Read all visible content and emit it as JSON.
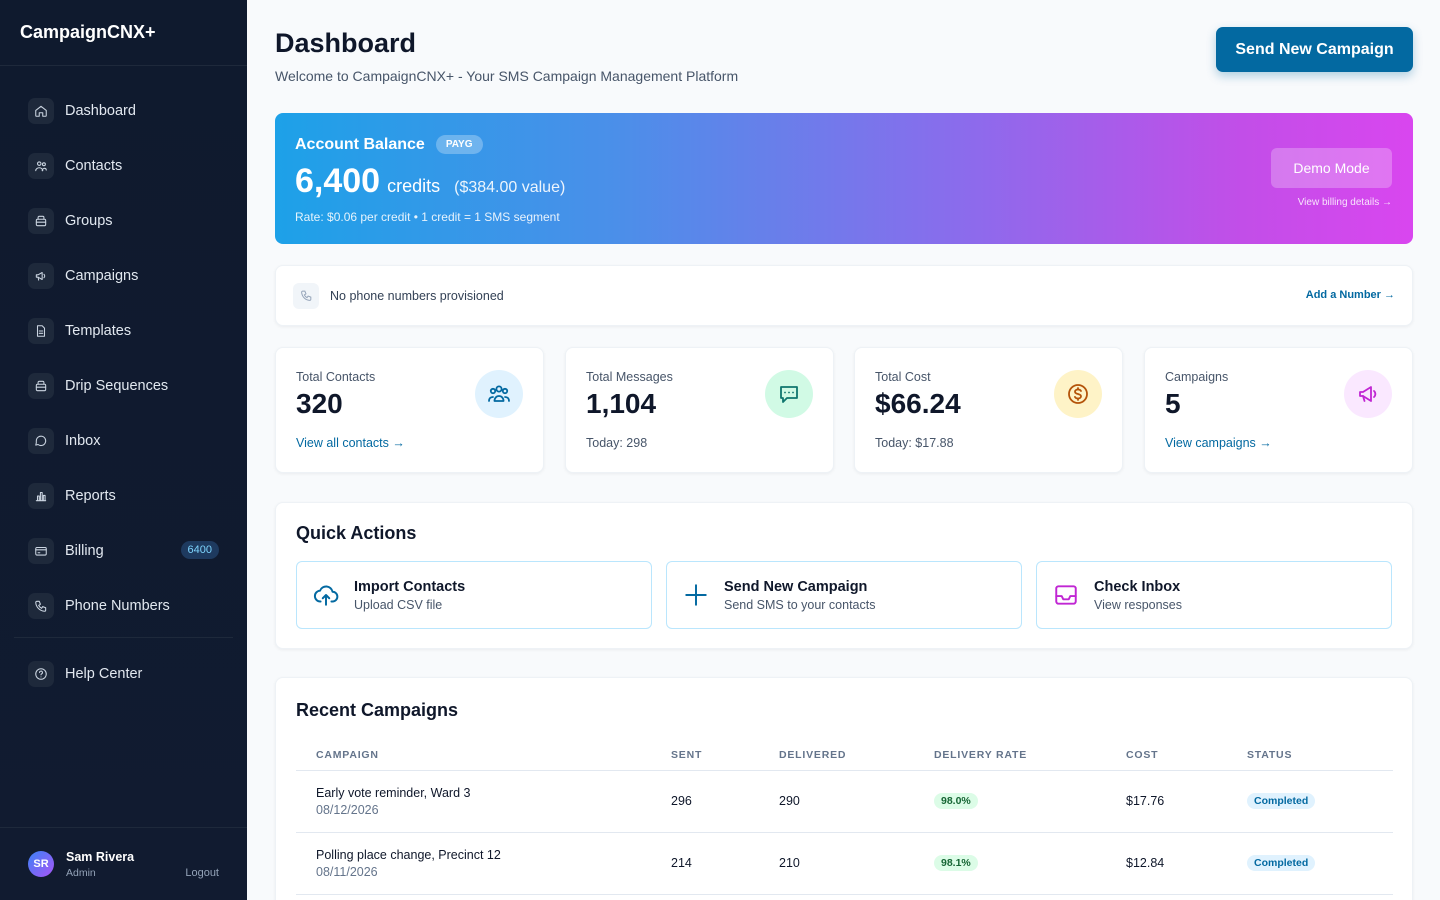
{
  "app": {
    "brand": "CampaignCNX+"
  },
  "sidebar": {
    "items": [
      {
        "label": "Dashboard",
        "icon": "home-icon"
      },
      {
        "label": "Contacts",
        "icon": "users-icon"
      },
      {
        "label": "Groups",
        "icon": "folder-icon"
      },
      {
        "label": "Campaigns",
        "icon": "megaphone-icon"
      },
      {
        "label": "Templates",
        "icon": "document-icon"
      },
      {
        "label": "Drip Sequences",
        "icon": "drip-icon"
      },
      {
        "label": "Inbox",
        "icon": "chat-icon"
      },
      {
        "label": "Reports",
        "icon": "bar-chart-icon"
      },
      {
        "label": "Billing",
        "icon": "card-icon",
        "badge": "6400"
      },
      {
        "label": "Phone Numbers",
        "icon": "phone-icon"
      }
    ],
    "help": {
      "label": "Help Center",
      "icon": "help-icon"
    },
    "user": {
      "initials": "SR",
      "name": "Sam Rivera",
      "role": "Admin",
      "logout": "Logout"
    }
  },
  "header": {
    "title": "Dashboard",
    "subtitle": "Welcome to CampaignCNX+ - Your SMS Campaign Management Platform",
    "cta": "Send New Campaign"
  },
  "balance": {
    "title": "Account Balance",
    "plan": "PAYG",
    "credits": "6,400",
    "unit": "credits",
    "value": "($384.00 value)",
    "rate": "Rate: $0.06 per credit • 1 credit = 1 SMS segment",
    "demo": "Demo Mode",
    "billing_link": "View billing details →"
  },
  "phone": {
    "text": "No phone numbers provisioned",
    "action": "Add a Number →"
  },
  "stats": [
    {
      "label": "Total Contacts",
      "value": "320",
      "foot": "View all contacts →",
      "icon": "users-icon",
      "color": "#0369a1",
      "bg": "#e0f2fe"
    },
    {
      "label": "Total Messages",
      "value": "1,104",
      "foot": "Today: 298",
      "icon": "chat-icon",
      "color": "#0f766e",
      "bg": "#d1fae5"
    },
    {
      "label": "Total Cost",
      "value": "$66.24",
      "foot": "Today: $17.88",
      "icon": "dollar-icon",
      "color": "#b45309",
      "bg": "#fef3c7"
    },
    {
      "label": "Campaigns",
      "value": "5",
      "foot": "View campaigns →",
      "icon": "megaphone-icon",
      "color": "#c026d3",
      "bg": "#fae8ff"
    }
  ],
  "quick_actions": {
    "title": "Quick Actions",
    "items": [
      {
        "title": "Import Contacts",
        "sub": "Upload CSV file",
        "icon": "upload-cloud-icon",
        "color": "#0369a1"
      },
      {
        "title": "Send New Campaign",
        "sub": "Send SMS to your contacts",
        "icon": "plus-icon",
        "color": "#0369a1"
      },
      {
        "title": "Check Inbox",
        "sub": "View responses",
        "icon": "inbox-icon",
        "color": "#c026d3"
      }
    ]
  },
  "recent": {
    "title": "Recent Campaigns",
    "columns": [
      "CAMPAIGN",
      "SENT",
      "DELIVERED",
      "DELIVERY RATE",
      "COST",
      "STATUS"
    ],
    "rows": [
      {
        "name": "Early vote reminder, Ward 3",
        "date": "08/12/2026",
        "sent": "296",
        "delivered": "290",
        "rate": "98.0%",
        "cost": "$17.76",
        "status": "Completed"
      },
      {
        "name": "Polling place change, Precinct 12",
        "date": "08/11/2026",
        "sent": "214",
        "delivered": "210",
        "rate": "98.1%",
        "cost": "$12.84",
        "status": "Completed"
      }
    ]
  }
}
